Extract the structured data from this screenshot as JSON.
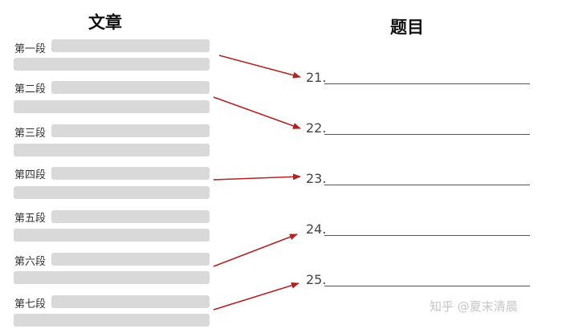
{
  "left_title": "文章",
  "right_title": "题目",
  "paragraphs": [
    {
      "label": "第一段"
    },
    {
      "label": "第二段"
    },
    {
      "label": "第三段"
    },
    {
      "label": "第四段"
    },
    {
      "label": "第五段"
    },
    {
      "label": "第六段"
    },
    {
      "label": "第七段"
    }
  ],
  "questions": [
    {
      "number": "21."
    },
    {
      "number": "22."
    },
    {
      "number": "23."
    },
    {
      "number": "24."
    },
    {
      "number": "25."
    }
  ],
  "links": [
    {
      "from": "第一段",
      "to": "21."
    },
    {
      "from": "第二段",
      "to": "22."
    },
    {
      "from": "第四段",
      "to": "23."
    },
    {
      "from": "第六段",
      "to": "24."
    },
    {
      "from": "第七段",
      "to": "25."
    }
  ],
  "colors": {
    "arrow": "#b22222",
    "bar": "#d9d9d9"
  },
  "watermark": "知乎 @夏末清晨"
}
